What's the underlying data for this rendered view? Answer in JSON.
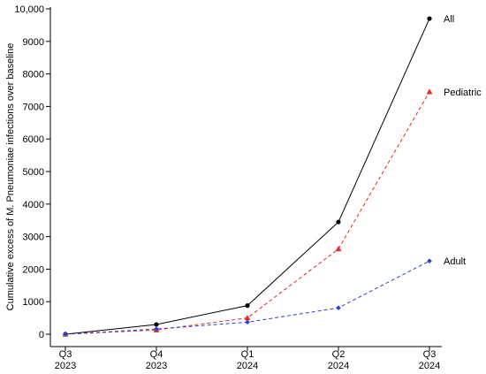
{
  "chart_data": {
    "type": "line",
    "title": "",
    "xlabel": "",
    "ylabel": "Cumulative excess of M. Pneumoniae infections over baseline",
    "categories": [
      {
        "top": "Q3",
        "bottom": "2023"
      },
      {
        "top": "Q4",
        "bottom": "2023"
      },
      {
        "top": "Q1",
        "bottom": "2024"
      },
      {
        "top": "Q2",
        "bottom": "2024"
      },
      {
        "top": "Q3",
        "bottom": "2024"
      }
    ],
    "ylim": [
      0,
      10000
    ],
    "yticks": [
      {
        "value": 0,
        "label": "0"
      },
      {
        "value": 1000,
        "label": "1000"
      },
      {
        "value": 2000,
        "label": "2000"
      },
      {
        "value": 3000,
        "label": "3000"
      },
      {
        "value": 4000,
        "label": "4000"
      },
      {
        "value": 5000,
        "label": "5000"
      },
      {
        "value": 6000,
        "label": "6000"
      },
      {
        "value": 7000,
        "label": "7000"
      },
      {
        "value": 8000,
        "label": "8000"
      },
      {
        "value": 9000,
        "label": "9000"
      },
      {
        "value": 10000,
        "label": "10,000"
      }
    ],
    "grid": false,
    "legend": "inline labels at line ends",
    "series": [
      {
        "name": "All",
        "values": [
          0,
          300,
          880,
          3450,
          9700
        ],
        "color": "#000000",
        "dash": "solid",
        "marker": "circle"
      },
      {
        "name": "Pediatric",
        "values": [
          0,
          130,
          500,
          2620,
          7450
        ],
        "color": "#e8281e",
        "dash": "dashed",
        "marker": "triangle"
      },
      {
        "name": "Adult",
        "values": [
          0,
          160,
          370,
          810,
          2250
        ],
        "color": "#2b3fd6",
        "dash": "dashed",
        "marker": "diamond"
      }
    ]
  }
}
